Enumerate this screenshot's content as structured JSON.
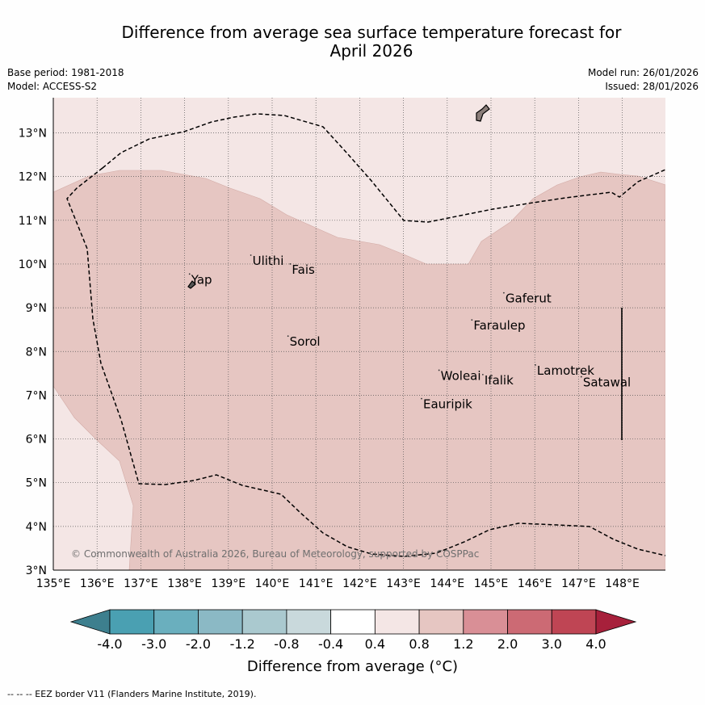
{
  "title_line1": "Difference from average sea surface temperature forecast for",
  "title_line2": "April 2026",
  "base_period": "Base period: 1981-2018",
  "model": "Model: ACCESS-S2",
  "model_run": "Model run: 26/01/2026",
  "issued": "Issued: 28/01/2026",
  "copyright": "© Commonwealth of Australia 2026, Bureau of Meteorology, supported by COSPPac",
  "eez_note": "--  --  -- EEZ border V11 (Flanders Marine Institute, 2019).",
  "map": {
    "lon_range": [
      135,
      149
    ],
    "lat_range": [
      3,
      13.8
    ],
    "lon_ticks": [
      "135°E",
      "136°E",
      "137°E",
      "138°E",
      "139°E",
      "140°E",
      "141°E",
      "142°E",
      "143°E",
      "144°E",
      "145°E",
      "146°E",
      "147°E",
      "148°E"
    ],
    "lat_ticks": [
      "3°N",
      "4°N",
      "5°N",
      "6°N",
      "7°N",
      "8°N",
      "9°N",
      "10°N",
      "11°N",
      "12°N",
      "13°N"
    ],
    "colors": {
      "anomaly_0p4_0p8": "#f4e6e5",
      "anomaly_0p8_1p2": "#e6c6c2",
      "land": "#8a7d79"
    },
    "places": [
      {
        "name": "Yap",
        "lon": 138.15,
        "lat": 9.55
      },
      {
        "name": "Ulithi",
        "lon": 139.55,
        "lat": 9.98
      },
      {
        "name": "Fais",
        "lon": 140.45,
        "lat": 9.78
      },
      {
        "name": "Gaferut",
        "lon": 145.33,
        "lat": 9.12
      },
      {
        "name": "Faraulep",
        "lon": 144.6,
        "lat": 8.5
      },
      {
        "name": "Sorol",
        "lon": 140.4,
        "lat": 8.13
      },
      {
        "name": "Woleai",
        "lon": 143.85,
        "lat": 7.35
      },
      {
        "name": "Ifalik",
        "lon": 144.85,
        "lat": 7.25
      },
      {
        "name": "Lamotrek",
        "lon": 146.05,
        "lat": 7.47
      },
      {
        "name": "Satawal",
        "lon": 147.1,
        "lat": 7.2
      },
      {
        "name": "Eauripik",
        "lon": 143.45,
        "lat": 6.7
      }
    ]
  },
  "colorbar": {
    "title": "Difference from average (°C)",
    "tick_labels": [
      "-4.0",
      "-3.0",
      "-2.0",
      "-1.2",
      "-0.8",
      "-0.4",
      "0.4",
      "0.8",
      "1.2",
      "2.0",
      "3.0",
      "4.0"
    ],
    "colors": [
      "#3d7f8e",
      "#4aa0b2",
      "#6aafbe",
      "#8bb9c5",
      "#aac9cf",
      "#c9d9dc",
      "#ffffff",
      "#f4e6e5",
      "#e6c6c2",
      "#d98f96",
      "#cc6a74",
      "#bf4554",
      "#a7203b"
    ]
  }
}
